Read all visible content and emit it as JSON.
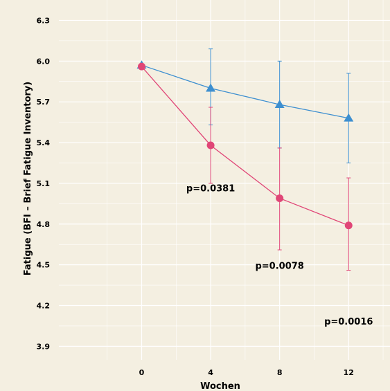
{
  "chart_data": {
    "type": "line",
    "title": "",
    "xlabel": "Wochen",
    "ylabel": "Fatigue (BFI – Brief Fatigue Inventory)",
    "x": [
      0,
      4,
      8,
      12
    ],
    "xticks": [
      "0",
      "4",
      "8",
      "12"
    ],
    "xlim": [
      -4.8,
      14.4
    ],
    "ylim": [
      3.8,
      6.45
    ],
    "yticks": [
      "3.9",
      "4.2",
      "4.5",
      "4.8",
      "5.1",
      "5.4",
      "5.7",
      "6.0",
      "6.3"
    ],
    "grid": true,
    "series": [
      {
        "marker": "triangle",
        "color": "#3d8fd0",
        "values": [
          5.97,
          5.8,
          5.68,
          5.58
        ],
        "err_low": [
          5.97,
          5.53,
          5.36,
          5.25
        ],
        "err_high": [
          5.97,
          6.09,
          6.0,
          5.91
        ]
      },
      {
        "marker": "circle",
        "color": "#e04677",
        "values": [
          5.96,
          5.38,
          4.99,
          4.79
        ],
        "err_low": [
          5.96,
          5.1,
          4.61,
          4.46
        ],
        "err_high": [
          5.96,
          5.66,
          5.36,
          5.14
        ]
      }
    ],
    "annotations": [
      {
        "text": "p=0.0381",
        "x": 4,
        "y": 5.04
      },
      {
        "text": "p=0.0078",
        "x": 8,
        "y": 4.47
      },
      {
        "text": "p=0.0016",
        "x": 12,
        "y": 4.06
      }
    ]
  }
}
